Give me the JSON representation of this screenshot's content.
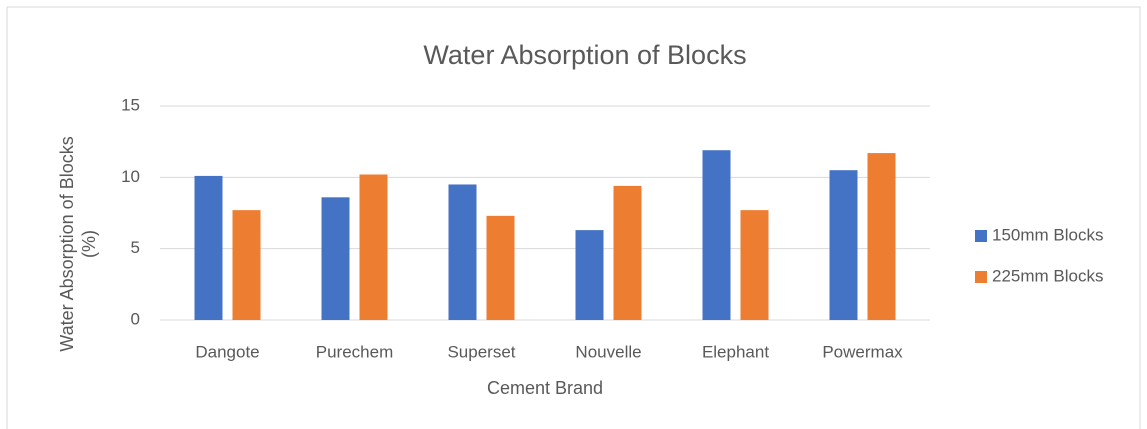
{
  "chart_data": {
    "type": "bar",
    "title": "Water Absorption of Blocks",
    "x_label": "Cement Brand",
    "y_label": "Water Absorption of Blocks (%)",
    "categories": [
      "Dangote",
      "Purechem",
      "Superset",
      "Nouvelle",
      "Elephant",
      "Powermax"
    ],
    "series": [
      {
        "name": "150mm Blocks",
        "color": "#4472c4",
        "values": [
          10.1,
          8.6,
          9.5,
          6.3,
          11.9,
          10.5
        ]
      },
      {
        "name": "225mm Blocks",
        "color": "#ed7d31",
        "values": [
          7.7,
          10.2,
          7.3,
          9.4,
          7.7,
          11.7
        ]
      }
    ],
    "ylim": [
      0,
      15
    ],
    "yticks": [
      0,
      5,
      10,
      15
    ],
    "grid": true,
    "legend": "right"
  }
}
